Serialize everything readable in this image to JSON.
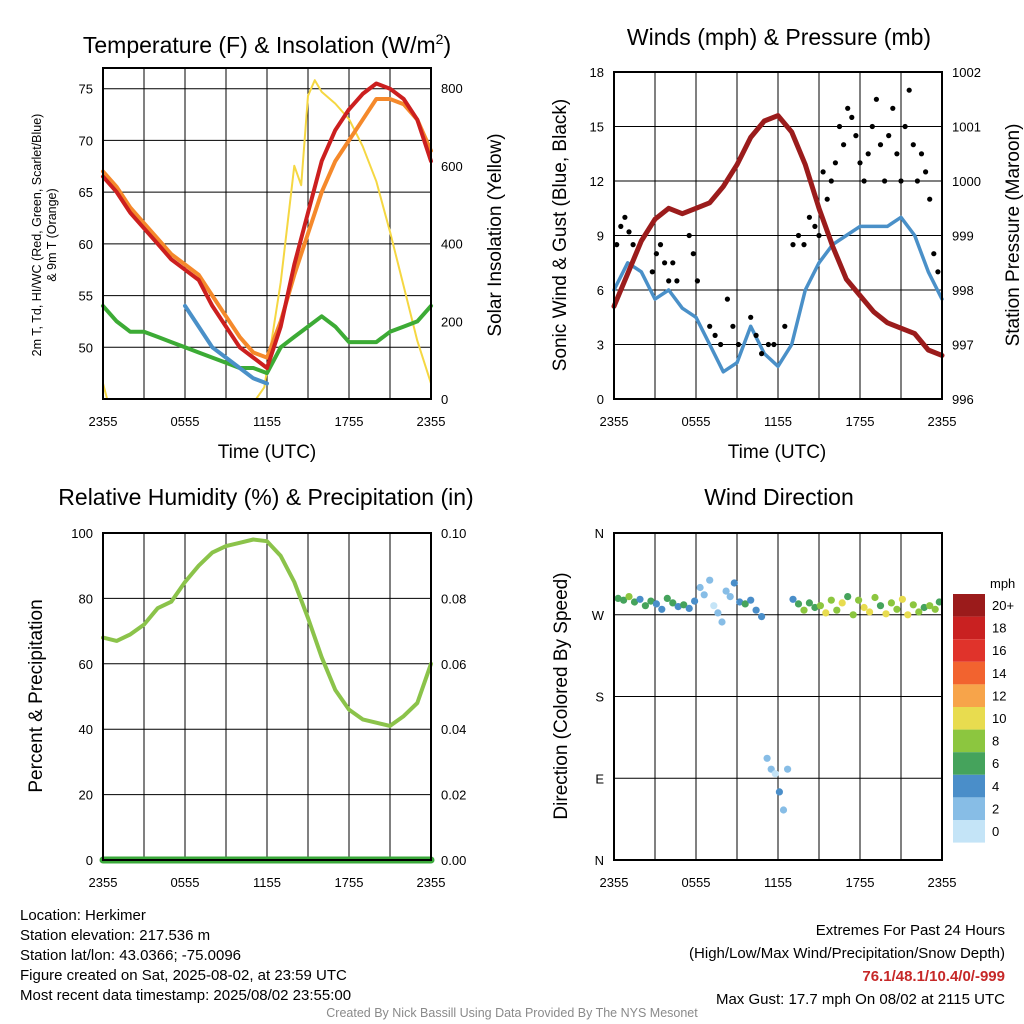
{
  "colors": {
    "red": "#cc1f1f",
    "green": "#3cab35",
    "scarlet": "#e02020",
    "blue": "#4a90c8",
    "orange": "#f5892b",
    "yellow": "#f5d742",
    "maroon": "#9b1c1c",
    "black": "#000000",
    "rh_green": "#8bc34a",
    "precip_green": "#3aa83a"
  },
  "chart_data": [
    {
      "type": "line",
      "title": "Temperature (F) & Insolation (W/m²)",
      "title_main": "Temperature (F) & Insolation (W/m",
      "title_sup": "2",
      "title_end": ")",
      "xlabel": "Time (UTC)",
      "ylabel_line1": "2m T, Td, HI/WC (Red, Green, Scarlet/Blue)",
      "ylabel_line2": "& 9m T (Orange)",
      "ylabel_right": "Solar Insolation (Yellow)",
      "x_ticks": [
        "2355",
        "0555",
        "1155",
        "1755",
        "2355"
      ],
      "y_ticks": [
        50,
        55,
        60,
        65,
        70,
        75
      ],
      "ylim": [
        45,
        77
      ],
      "y2_ticks": [
        0,
        200,
        400,
        600,
        800
      ],
      "y2lim": [
        0,
        800
      ],
      "x": [
        0,
        1,
        2,
        3,
        4,
        5,
        6,
        7,
        8,
        9,
        10,
        11,
        12,
        13,
        14,
        15,
        16,
        17,
        18,
        19,
        20,
        21,
        22,
        23,
        24
      ],
      "series": [
        {
          "name": "2m T",
          "color_key": "red",
          "values": [
            66.5,
            65,
            63,
            61.5,
            60,
            58.5,
            57.5,
            56.5,
            54,
            52,
            50,
            49,
            48,
            52,
            58,
            63,
            68,
            71,
            73,
            74.5,
            75.5,
            75,
            74,
            72,
            68
          ]
        },
        {
          "name": "9m T",
          "color_key": "orange",
          "values": [
            67,
            65.5,
            63.5,
            62,
            60.5,
            59,
            58,
            57,
            55,
            53,
            51,
            49.5,
            49,
            52.5,
            57,
            61,
            65,
            68,
            70,
            72,
            74,
            74,
            73.5,
            72,
            69
          ]
        },
        {
          "name": "Td",
          "color_key": "green",
          "values": [
            54,
            52.5,
            51.5,
            51.5,
            51,
            50.5,
            50,
            49.5,
            49,
            48.5,
            48,
            48,
            47.5,
            50,
            51,
            52,
            53,
            52,
            50.5,
            50.5,
            50.5,
            51.5,
            52,
            52.5,
            54
          ]
        },
        {
          "name": "HI/WC",
          "color_key": "blue",
          "values": [
            null,
            null,
            null,
            null,
            null,
            null,
            54,
            52,
            50,
            49,
            48,
            47,
            46.5,
            null,
            null,
            null,
            null,
            null,
            null,
            null,
            null,
            null,
            null,
            null,
            null
          ]
        }
      ],
      "insolation": {
        "name": "Solar Insolation",
        "color_key": "yellow",
        "x": [
          0,
          0.3,
          1,
          2,
          4,
          6,
          8,
          10,
          11.2,
          11.8,
          13,
          14,
          14.5,
          15,
          15.5,
          16,
          17,
          18,
          19,
          20,
          21,
          22,
          23,
          24
        ],
        "values": [
          40,
          0,
          0,
          0,
          0,
          0,
          0,
          0,
          0,
          30,
          300,
          600,
          550,
          780,
          820,
          790,
          760,
          720,
          650,
          560,
          430,
          290,
          150,
          40
        ]
      }
    },
    {
      "type": "scatter",
      "title": "Winds (mph) & Pressure (mb)",
      "xlabel": "Time (UTC)",
      "ylabel": "Sonic Wind & Gust (Blue, Black)",
      "ylabel_right": "Station Pressure (Maroon)",
      "x_ticks": [
        "2355",
        "0555",
        "1155",
        "1755",
        "2355"
      ],
      "y_ticks": [
        0,
        3,
        6,
        9,
        12,
        15,
        18
      ],
      "ylim": [
        0,
        18
      ],
      "y2_ticks": [
        996,
        997,
        998,
        999,
        1000,
        1001,
        1002
      ],
      "y2lim": [
        996,
        1002
      ],
      "x": [
        0,
        1,
        2,
        3,
        4,
        5,
        6,
        7,
        8,
        9,
        10,
        11,
        12,
        13,
        14,
        15,
        16,
        17,
        18,
        19,
        20,
        21,
        22,
        23,
        24
      ],
      "series": [
        {
          "name": "Sonic Wind",
          "color_key": "blue",
          "values": [
            6,
            7.5,
            7,
            5.5,
            6,
            5,
            4.5,
            3,
            1.5,
            2,
            4,
            2.5,
            1.8,
            3,
            6,
            7.5,
            8.5,
            9,
            9.5,
            9.5,
            9.5,
            10,
            9,
            7,
            5.5
          ]
        },
        {
          "name": "Pressure",
          "color_key": "maroon",
          "values": [
            997.7,
            998.3,
            998.9,
            999.3,
            999.5,
            999.4,
            999.5,
            999.6,
            999.9,
            1000.3,
            1000.8,
            1001.1,
            1001.2,
            1000.9,
            1000.3,
            999.5,
            998.8,
            998.2,
            997.9,
            997.6,
            997.4,
            997.3,
            997.2,
            996.9,
            996.8
          ]
        }
      ],
      "gusts": {
        "name": "Gust",
        "color_key": "black",
        "x": [
          0.2,
          0.5,
          0.8,
          1.1,
          1.4,
          2.8,
          3.1,
          3.4,
          3.7,
          4.0,
          4.3,
          4.6,
          5.5,
          5.8,
          6.1,
          7.0,
          7.4,
          7.8,
          8.3,
          8.7,
          9.1,
          10.0,
          10.4,
          10.8,
          11.3,
          11.7,
          12.5,
          13.1,
          13.5,
          13.9,
          14.3,
          14.7,
          15.0,
          15.3,
          15.6,
          15.9,
          16.2,
          16.5,
          16.8,
          17.1,
          17.4,
          17.7,
          18.0,
          18.3,
          18.6,
          18.9,
          19.2,
          19.5,
          19.8,
          20.1,
          20.4,
          20.7,
          21.0,
          21.3,
          21.6,
          21.9,
          22.2,
          22.5,
          22.8,
          23.1,
          23.4,
          23.7
        ],
        "values": [
          8.5,
          9.5,
          10,
          9.2,
          8.5,
          7,
          8,
          8.5,
          7.5,
          6.5,
          7.5,
          6.5,
          9,
          8,
          6.5,
          4,
          3.5,
          3,
          5.5,
          4,
          3,
          4.5,
          3.5,
          2.5,
          3,
          3,
          4,
          8.5,
          9,
          8.5,
          10,
          9.5,
          9,
          12.5,
          11,
          12,
          13,
          15,
          14,
          16,
          15.5,
          14.5,
          13,
          12,
          13.5,
          15,
          16.5,
          14,
          12,
          14.5,
          16,
          13.5,
          12,
          15,
          17,
          14,
          12,
          13.5,
          12.5,
          11,
          8,
          7
        ]
      }
    },
    {
      "type": "line",
      "title": "Relative Humidity (%) & Precipitation (in)",
      "xlabel": "",
      "ylabel": "Percent & Precipitation",
      "x_ticks": [
        "2355",
        "0555",
        "1155",
        "1755",
        "2355"
      ],
      "y_ticks": [
        0,
        20,
        40,
        60,
        80,
        100
      ],
      "ylim": [
        0,
        100
      ],
      "y2_ticks": [
        "0.00",
        "0.02",
        "0.04",
        "0.06",
        "0.08",
        "0.10"
      ],
      "y2lim": [
        0,
        0.1
      ],
      "x": [
        0,
        1,
        2,
        3,
        4,
        5,
        6,
        7,
        8,
        9,
        10,
        11,
        12,
        13,
        14,
        15,
        16,
        17,
        18,
        19,
        20,
        21,
        22,
        23,
        24
      ],
      "series": [
        {
          "name": "Relative Humidity",
          "color_key": "rh_green",
          "values": [
            68,
            67,
            69,
            72,
            77,
            79,
            85,
            90,
            94,
            96,
            97,
            98,
            97.5,
            93,
            85,
            74,
            62,
            52,
            46,
            43,
            42,
            41,
            44,
            48,
            60
          ]
        },
        {
          "name": "Precipitation",
          "color_key": "precip_green",
          "values": [
            0,
            0,
            0,
            0,
            0,
            0,
            0,
            0,
            0,
            0,
            0,
            0,
            0,
            0,
            0,
            0,
            0,
            0,
            0,
            0,
            0,
            0,
            0,
            0,
            0
          ]
        }
      ]
    },
    {
      "type": "scatter",
      "title": "Wind Direction",
      "xlabel": "",
      "ylabel": "Direction (Colored By Speed)",
      "x_ticks": [
        "2355",
        "0555",
        "1155",
        "1755",
        "2355"
      ],
      "y_ticks": [
        "N",
        "E",
        "S",
        "W",
        "N"
      ],
      "ylim": [
        0,
        360
      ],
      "legend_title": "mph",
      "legend_labels": [
        "20+",
        "18",
        "16",
        "14",
        "12",
        "10",
        "8",
        "6",
        "4",
        "2",
        "0"
      ],
      "legend_colors": [
        "#9b1b1b",
        "#c92121",
        "#e0332b",
        "#f2632f",
        "#f7a44a",
        "#e8dc4f",
        "#8cc63f",
        "#45a35c",
        "#4a8ec9",
        "#87bde6",
        "#c4e4f7"
      ],
      "points": {
        "x": [
          0.3,
          0.7,
          1.1,
          1.5,
          1.9,
          2.3,
          2.7,
          3.1,
          3.5,
          3.9,
          4.3,
          4.7,
          5.1,
          5.5,
          5.9,
          6.3,
          6.6,
          7.0,
          7.3,
          7.6,
          7.9,
          8.2,
          8.5,
          8.8,
          9.2,
          9.6,
          10.0,
          10.4,
          10.8,
          11.2,
          11.5,
          11.8,
          12.1,
          12.4,
          12.7,
          13.1,
          13.5,
          13.9,
          14.3,
          14.7,
          15.1,
          15.5,
          15.9,
          16.3,
          16.7,
          17.1,
          17.5,
          17.9,
          18.3,
          18.7,
          19.1,
          19.5,
          19.9,
          20.3,
          20.7,
          21.1,
          21.5,
          21.9,
          22.3,
          22.7,
          23.1,
          23.5,
          23.8
        ],
        "values": [
          288,
          286,
          290,
          284,
          287,
          280,
          285,
          282,
          276,
          288,
          283,
          279,
          281,
          277,
          285,
          300,
          292,
          308,
          280,
          272,
          262,
          296,
          290,
          305,
          284,
          282,
          286,
          275,
          268,
          112,
          100,
          95,
          75,
          55,
          100,
          287,
          282,
          275,
          283,
          278,
          280,
          272,
          286,
          275,
          283,
          290,
          270,
          286,
          278,
          273,
          289,
          280,
          271,
          283,
          276,
          287,
          270,
          281,
          273,
          278,
          280,
          276,
          284
        ],
        "speeds": [
          5,
          6,
          7,
          5,
          4,
          6,
          5,
          3,
          4,
          5,
          6,
          3,
          5,
          4,
          3,
          1,
          2,
          1,
          0,
          1,
          2,
          1,
          2,
          3,
          4,
          5,
          4,
          3,
          4,
          1,
          2,
          0,
          3,
          2,
          1,
          4,
          5,
          7,
          6,
          5,
          8,
          9,
          7,
          8,
          10,
          6,
          8,
          7,
          9,
          10,
          8,
          6,
          9,
          8,
          7,
          10,
          9,
          8,
          7,
          6,
          8,
          7,
          5
        ]
      }
    }
  ],
  "info": {
    "location": "Location: Herkimer",
    "elevation": "Station elevation: 217.536 m",
    "latlon": "Station lat/lon: 43.0366; -75.0096",
    "created": "Figure created on Sat, 2025-08-02, at 23:59 UTC",
    "recent": "Most recent data timestamp: 2025/08/02 23:55:00"
  },
  "extremes": {
    "title": "Extremes For Past 24 Hours",
    "subtitle": "(High/Low/Max Wind/Precipitation/Snow Depth)",
    "values": "76.1/48.1/10.4/0/-999",
    "max_gust": "Max Gust: 17.7 mph On 08/02 at 2115 UTC"
  },
  "credit": "Created By Nick Bassill Using Data Provided By The NYS Mesonet"
}
